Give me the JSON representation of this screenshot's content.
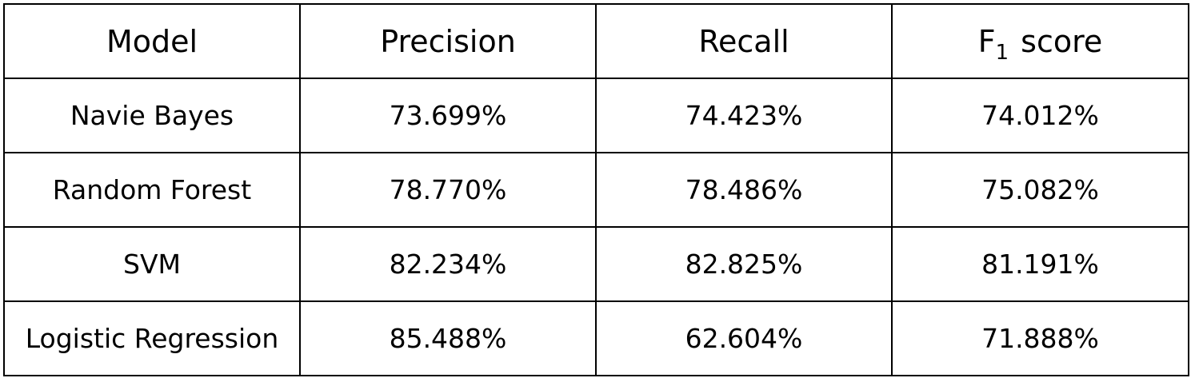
{
  "table": {
    "headers": {
      "model": "Model",
      "precision": "Precision",
      "recall": "Recall",
      "f1_base": "F",
      "f1_sub": "1",
      "f1_rest": "score"
    },
    "rows": [
      {
        "model": "Navie Bayes",
        "precision": "73.699%",
        "recall": "74.423%",
        "f1": "74.012%"
      },
      {
        "model": "Random Forest",
        "precision": "78.770%",
        "recall": "78.486%",
        "f1": "75.082%"
      },
      {
        "model": "SVM",
        "precision": "82.234%",
        "recall": "82.825%",
        "f1": "81.191%"
      },
      {
        "model": "Logistic Regression",
        "precision": "85.488%",
        "recall": "62.604%",
        "f1": "71.888%"
      }
    ]
  }
}
